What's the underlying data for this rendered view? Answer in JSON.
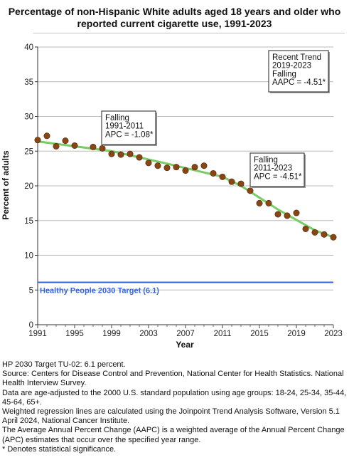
{
  "chart_data": {
    "type": "scatter",
    "title": "Percentage of non-Hispanic White adults aged 18 years and older who reported current cigarette use, 1991-2023",
    "xlabel": "Year",
    "ylabel": "Percent of adults",
    "xlim": [
      1991,
      2023
    ],
    "ylim": [
      0,
      40
    ],
    "x_ticks": [
      "1991",
      "1995",
      "1999",
      "2003",
      "2007",
      "2011",
      "2015",
      "2019",
      "2023"
    ],
    "y_ticks": [
      "0",
      "5",
      "10",
      "15",
      "20",
      "25",
      "30",
      "35",
      "40"
    ],
    "grid": true,
    "colors": {
      "points": "#8b4513",
      "trend": "#77cc66",
      "target": "#3366dd",
      "grid": "#bbbbbb"
    },
    "series": [
      {
        "x": [
          1991,
          1992,
          1993,
          1994,
          1995,
          1997,
          1998,
          1999,
          2000,
          2001,
          2002,
          2003,
          2004,
          2005,
          2006,
          2007,
          2008,
          2009,
          2010,
          2011,
          2012,
          2013,
          2014,
          2015,
          2016,
          2017,
          2018,
          2019,
          2020,
          2021,
          2022,
          2023
        ],
        "y": [
          26.6,
          27.2,
          25.7,
          26.5,
          25.8,
          25.6,
          25.4,
          24.6,
          24.5,
          24.6,
          24.1,
          23.3,
          22.9,
          22.6,
          22.7,
          22.2,
          22.7,
          22.9,
          21.8,
          21.3,
          20.6,
          20.3,
          19.3,
          17.5,
          17.5,
          15.9,
          15.7,
          16.1,
          13.8,
          13.3,
          13.0,
          12.6
        ]
      }
    ],
    "trend_segments": [
      {
        "x": [
          1991,
          1999,
          2005,
          2011
        ],
        "y": [
          26.4,
          25.0,
          23.2,
          21.3
        ]
      },
      {
        "x": [
          2011,
          2013,
          2015,
          2017,
          2019,
          2021,
          2023
        ],
        "y": [
          21.3,
          20.0,
          18.3,
          16.6,
          15.1,
          13.6,
          12.6
        ]
      }
    ],
    "target": {
      "value": 6.1,
      "label": "Healthy People 2030 Target (6.1)"
    },
    "annotations": [
      {
        "lines": [
          "Falling",
          "1991-2011",
          "APC = -1.08*"
        ]
      },
      {
        "lines": [
          "Falling",
          "2011-2023",
          "APC = -4.51*"
        ]
      },
      {
        "lines": [
          "Recent Trend",
          "2019-2023",
          "Falling",
          "AAPC = -4.51*"
        ]
      }
    ]
  },
  "footnotes": [
    "HP 2030 Target TU-02: 6.1 percent.",
    "Source: Centers for Disease Control and Prevention, National Center for Health Statistics. National Health Interview Survey.",
    "Data are age-adjusted to the 2000 U.S. standard population using age groups: 18-24, 25-34, 35-44, 45-64, 65+.",
    "Weighted regression lines are calculated using the Joinpoint Trend Analysis Software, Version 5.1 April 2024, National Cancer Institute.",
    "The Average Annual Percent Change (AAPC) is a weighted average of the Annual Percent Change (APC) estimates that occur over the specified year range.",
    "* Denotes statistical significance."
  ]
}
